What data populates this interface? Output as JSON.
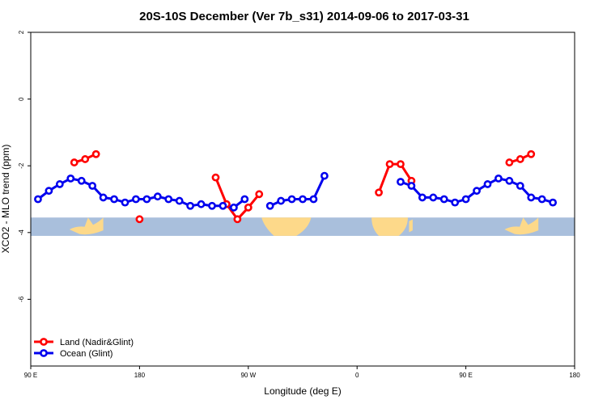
{
  "chart_data": {
    "type": "line",
    "title": "20S-10S December (Ver 7b_s31)   2014-09-06 to 2017-03-31",
    "xlabel": "Longitude (deg E)",
    "ylabel": "XCO2 - MLO trend (ppm)",
    "xlim": [
      90,
      540
    ],
    "ylim": [
      -8,
      2
    ],
    "x_ticks": [
      {
        "value": 90,
        "label": "90 E"
      },
      {
        "value": 180,
        "label": "180"
      },
      {
        "value": 270,
        "label": "90 W"
      },
      {
        "value": 360,
        "label": "0"
      },
      {
        "value": 450,
        "label": "90 E"
      },
      {
        "value": 540,
        "label": "180"
      }
    ],
    "y_ticks": [
      {
        "value": 2,
        "label": "2"
      },
      {
        "value": 0,
        "label": "0"
      },
      {
        "value": -2,
        "label": "-2"
      },
      {
        "value": -4,
        "label": "-4"
      },
      {
        "value": -6,
        "label": "-6"
      }
    ],
    "grid": false,
    "legend_position": "bottom-left",
    "map_band": {
      "y_top": -3.55,
      "y_bottom": -4.1,
      "ocean_color": "#a9bfdc",
      "land_color": "#fdd98a"
    },
    "series": [
      {
        "name": "Land (Nadir&Glint)",
        "color": "#ff0000",
        "segments": [
          [
            [
              126,
              -1.9
            ],
            [
              135,
              -1.8
            ],
            [
              144,
              -1.65
            ]
          ],
          [
            [
              180,
              -3.6
            ]
          ],
          [
            [
              243,
              -2.35
            ],
            [
              252,
              -3.15
            ],
            [
              261,
              -3.6
            ],
            [
              270,
              -3.25
            ],
            [
              279,
              -2.85
            ]
          ],
          [
            [
              378,
              -2.8
            ],
            [
              387,
              -1.95
            ],
            [
              396,
              -1.95
            ],
            [
              405,
              -2.45
            ]
          ],
          [
            [
              486,
              -1.9
            ],
            [
              495,
              -1.8
            ],
            [
              504,
              -1.65
            ]
          ]
        ]
      },
      {
        "name": "Ocean (Glint)",
        "color": "#0000ee",
        "segments": [
          [
            [
              96,
              -3.0
            ],
            [
              105,
              -2.75
            ],
            [
              114,
              -2.55
            ],
            [
              123,
              -2.38
            ],
            [
              132,
              -2.45
            ],
            [
              141,
              -2.6
            ],
            [
              150,
              -2.95
            ],
            [
              159,
              -3.0
            ],
            [
              168,
              -3.1
            ],
            [
              177,
              -3.0
            ],
            [
              186,
              -3.0
            ],
            [
              195,
              -2.92
            ],
            [
              204,
              -3.0
            ],
            [
              213,
              -3.05
            ],
            [
              222,
              -3.2
            ],
            [
              231,
              -3.15
            ],
            [
              240,
              -3.2
            ],
            [
              249,
              -3.2
            ],
            [
              258,
              -3.25
            ],
            [
              267,
              -3.0
            ]
          ],
          [
            [
              288,
              -3.2
            ],
            [
              297,
              -3.05
            ],
            [
              306,
              -3.0
            ],
            [
              315,
              -3.0
            ],
            [
              324,
              -3.0
            ],
            [
              333,
              -2.3
            ]
          ],
          [
            [
              396,
              -2.48
            ],
            [
              405,
              -2.6
            ],
            [
              414,
              -2.95
            ],
            [
              423,
              -2.95
            ],
            [
              432,
              -3.0
            ],
            [
              441,
              -3.1
            ],
            [
              450,
              -3.0
            ],
            [
              459,
              -2.75
            ],
            [
              468,
              -2.55
            ],
            [
              477,
              -2.38
            ],
            [
              486,
              -2.45
            ],
            [
              495,
              -2.6
            ],
            [
              504,
              -2.95
            ],
            [
              513,
              -3.0
            ],
            [
              522,
              -3.1
            ]
          ]
        ]
      }
    ],
    "land_patches": [
      {
        "name": "australia",
        "lon": [
          122,
          150
        ]
      },
      {
        "name": "south-america-west",
        "lon": [
          281,
          322
        ]
      },
      {
        "name": "africa",
        "lon": [
          372,
          402
        ]
      },
      {
        "name": "madagascar",
        "lon": [
          403,
          406
        ]
      },
      {
        "name": "australia-2",
        "lon": [
          482,
          510
        ]
      }
    ]
  }
}
